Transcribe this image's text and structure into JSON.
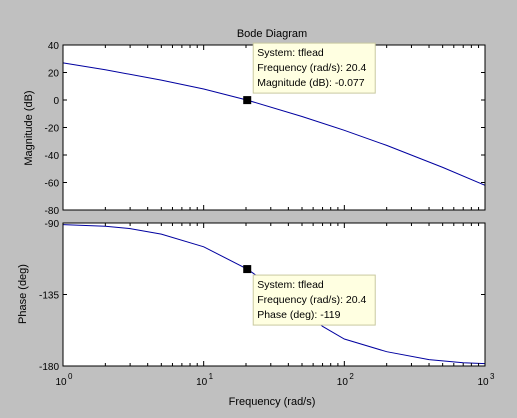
{
  "chart_data": {
    "type": "line",
    "title": "Bode Diagram",
    "xlabel": "Frequency  (rad/s)",
    "x_scale": "log",
    "xlim": [
      1,
      1000
    ],
    "x_tick_labels": [
      "10",
      "10",
      "10",
      "10"
    ],
    "x_tick_exponents": [
      "0",
      "1",
      "2",
      "3"
    ],
    "panels": [
      {
        "ylabel": "Magnitude (dB)",
        "ylim": [
          -80,
          40
        ],
        "y_ticks": [
          40,
          20,
          0,
          -20,
          -40,
          -60,
          -80
        ],
        "series": [
          {
            "color": "#0000a0",
            "x": [
              1,
              2,
              5,
              10,
              20.4,
              50,
              100,
              200,
              500,
              1000
            ],
            "y": [
              27,
              22,
              14.5,
              8,
              -0.077,
              -12,
              -22,
              -33,
              -49,
              -62
            ]
          }
        ],
        "datatip": {
          "x": 20.4,
          "y": -0.077,
          "lines": [
            "System: tflead",
            "Frequency (rad/s): 20.4",
            "Magnitude (dB): -0.077"
          ]
        }
      },
      {
        "ylabel": "Phase (deg)",
        "ylim": [
          -180,
          -90
        ],
        "y_ticks": [
          -90,
          -135,
          -180
        ],
        "series": [
          {
            "color": "#0000a0",
            "x": [
              1,
              2,
              3,
              5,
              10,
              20.4,
              40,
              70,
              100,
              200,
              400,
              700,
              1000
            ],
            "y": [
              -91,
              -92,
              -93.5,
              -97,
              -105,
              -119,
              -137,
              -155,
              -163,
              -171,
              -176,
              -178,
              -178.5
            ]
          }
        ],
        "datatip": {
          "x": 20.4,
          "y": -119,
          "lines": [
            "System: tflead",
            "Frequency (rad/s): 20.4",
            "Phase (deg): -119"
          ]
        }
      }
    ]
  }
}
